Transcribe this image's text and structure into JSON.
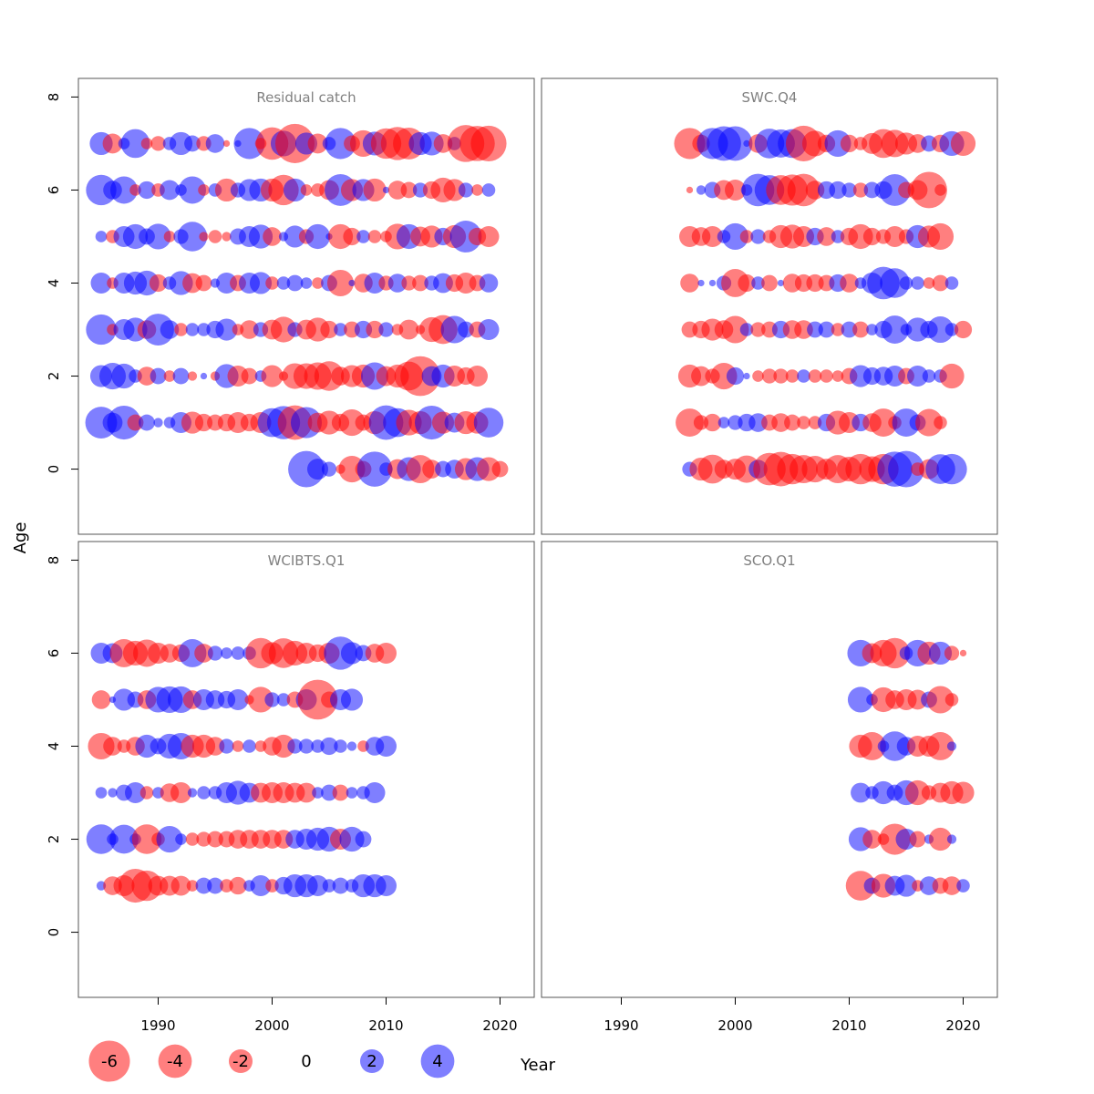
{
  "chart_data": {
    "type": "scatter",
    "subtype": "bubble",
    "xlabel": "Year",
    "ylabel": "Age",
    "xlim": [
      1983,
      2023
    ],
    "ylim": [
      -1.4,
      8.4
    ],
    "x_ticks": [
      1990,
      2000,
      2010,
      2020
    ],
    "y_ticks": [
      0,
      2,
      4,
      6,
      8
    ],
    "colors": {
      "positive": "#0000FF",
      "negative": "#FF0000",
      "opacity": 0.5
    },
    "legend": {
      "position": "bottom-left",
      "values": [
        -6,
        -4,
        -2,
        0,
        2,
        4
      ],
      "labels": [
        "-6",
        "-4",
        "-2",
        "0",
        "2",
        "4"
      ]
    },
    "panels": [
      {
        "title": "Residual catch",
        "year_start": 1985,
        "ages": [
          {
            "age": 7,
            "values": [
              1.2,
              -0.9,
              0.3,
              1.9,
              -0.3,
              -0.5,
              0.4,
              1.2,
              0.6,
              -0.5,
              0.8,
              -0.1,
              0.1,
              2.2,
              -0.3,
              -2.4,
              1.5,
              -3.5,
              1.1,
              -0.9,
              0.4,
              2.2,
              -0.6,
              -1.6,
              1.3,
              -2.1,
              -2.5,
              -2.3,
              1.2,
              1.3,
              -0.8,
              0.4,
              -3.1,
              -2.8,
              -2.9
            ]
          },
          {
            "age": 6,
            "values": [
              2.1,
              0.8,
              1.7,
              -0.3,
              0.7,
              -0.4,
              0.9,
              0.3,
              1.7,
              -0.3,
              0.4,
              -1.2,
              0.5,
              1.1,
              1.2,
              -1.2,
              -2.1,
              1.2,
              -0.3,
              -0.4,
              -0.9,
              2.3,
              -1.1,
              1.1,
              -1.2,
              0.1,
              -0.8,
              -0.6,
              0.5,
              -0.7,
              -1.4,
              -1.1,
              0.5,
              -0.3,
              0.4
            ]
          },
          {
            "age": 5,
            "values": [
              0.3,
              -0.4,
              1.0,
              1.4,
              0.6,
              1.5,
              -0.3,
              0.5,
              2.0,
              -0.2,
              -0.4,
              -0.2,
              0.6,
              1.0,
              1.3,
              -0.8,
              0.2,
              1.1,
              -0.5,
              1.4,
              0.1,
              -1.4,
              -0.7,
              0.4,
              -0.4,
              -0.3,
              -1.5,
              1.4,
              -0.9,
              -1.1,
              0.7,
              -1.2,
              2.3,
              -0.7,
              -1.0
            ]
          },
          {
            "age": 4,
            "values": [
              1.0,
              -0.3,
              1.0,
              1.2,
              1.4,
              -0.7,
              0.4,
              1.3,
              -0.9,
              -0.6,
              0.2,
              1.0,
              -0.6,
              1.0,
              1.1,
              -0.4,
              0.4,
              0.6,
              0.3,
              -0.3,
              0.6,
              -1.6,
              0.1,
              -0.8,
              1.0,
              -0.5,
              0.8,
              -0.5,
              -0.6,
              0.5,
              0.9,
              -0.7,
              -1.0,
              -0.6,
              0.8
            ]
          },
          {
            "age": 3,
            "values": [
              2.1,
              -0.3,
              1.0,
              1.3,
              -0.8,
              2.3,
              0.8,
              -0.4,
              0.4,
              0.4,
              0.7,
              1.1,
              -0.3,
              -0.8,
              0.5,
              -0.9,
              -1.5,
              0.5,
              -0.9,
              -1.3,
              -0.7,
              0.4,
              -0.6,
              0.7,
              -0.7,
              0.5,
              -0.3,
              -0.9,
              -0.2,
              -1.4,
              -1.9,
              1.7,
              0.6,
              -0.6,
              1.0
            ]
          },
          {
            "age": 2,
            "values": [
              1.1,
              1.6,
              1.4,
              0.4,
              -0.8,
              0.6,
              -0.3,
              0.6,
              -0.2,
              0.1,
              -0.2,
              1.3,
              -1.0,
              -0.6,
              0.3,
              -1.1,
              -0.2,
              -1.5,
              -1.5,
              -1.7,
              -2.0,
              -0.8,
              -1.1,
              -1.2,
              1.7,
              -0.9,
              -1.2,
              -1.9,
              -3.6,
              0.9,
              1.2,
              -1.0,
              -0.7,
              -1.0
            ]
          },
          {
            "age": 1,
            "values": [
              2.3,
              0.9,
              2.6,
              -0.6,
              0.6,
              0.2,
              0.3,
              1.0,
              -1.1,
              -0.7,
              -0.6,
              -0.7,
              -1.0,
              -0.7,
              -1.0,
              1.9,
              2.5,
              -2.7,
              2.2,
              -0.9,
              -1.3,
              -0.7,
              -1.6,
              -0.6,
              -1.2,
              2.7,
              1.9,
              -1.5,
              -1.2,
              2.6,
              -1.1,
              0.9,
              -1.2,
              -1.1,
              2.0
            ]
          },
          {
            "age": 0,
            "values": [
              null,
              null,
              null,
              null,
              null,
              null,
              null,
              null,
              null,
              null,
              null,
              null,
              null,
              null,
              null,
              null,
              null,
              null,
              3.0,
              1.0,
              0.5,
              -0.2,
              -1.6,
              -0.6,
              2.8,
              0.4,
              -0.9,
              1.3,
              -1.8,
              -0.8,
              0.6,
              0.8,
              -1.1,
              1.3,
              -1.3,
              -0.6
            ]
          }
        ]
      },
      {
        "title": "SWC.Q4",
        "year_start": 1996,
        "ages": [
          {
            "age": 7,
            "values": [
              -2.2,
              -0.7,
              2.2,
              2.7,
              2.7,
              0.1,
              -0.8,
              2.0,
              1.8,
              1.9,
              -2.9,
              -1.5,
              -0.7,
              1.6,
              -0.7,
              -0.4,
              -1.0,
              -1.9,
              -1.7,
              -1.1,
              -0.8,
              0.6,
              -0.7,
              1.4,
              -1.4
            ]
          },
          {
            "age": 6,
            "values": [
              -0.1,
              0.2,
              0.6,
              -0.9,
              -1.0,
              0.3,
              2.4,
              2.0,
              -2.0,
              -2.2,
              -2.4,
              -0.8,
              0.7,
              0.7,
              0.5,
              -0.5,
              0.6,
              0.7,
              2.3,
              -0.6,
              -0.9,
              -3.0,
              -0.3
            ]
          },
          {
            "age": 5,
            "values": [
              -1.0,
              -0.8,
              -1.0,
              0.4,
              1.6,
              -0.4,
              0.5,
              -0.4,
              -1.2,
              -1.3,
              -1.0,
              0.7,
              -0.8,
              0.4,
              -0.7,
              -1.4,
              -0.7,
              -0.5,
              -1.0,
              -0.5,
              1.2,
              -1.1,
              -1.6
            ]
          },
          {
            "age": 4,
            "values": [
              -0.8,
              0.1,
              0.1,
              0.5,
              -1.8,
              -0.7,
              0.4,
              -0.6,
              0.1,
              -0.8,
              -0.7,
              -0.7,
              -0.6,
              0.7,
              -0.8,
              0.3,
              1.0,
              2.4,
              2.0,
              0.4,
              0.4,
              -0.3,
              -0.6,
              0.4
            ]
          },
          {
            "age": 3,
            "values": [
              -0.6,
              -0.7,
              -1.1,
              -0.8,
              -1.7,
              0.4,
              -0.5,
              -0.6,
              0.7,
              -0.8,
              -0.8,
              0.6,
              0.6,
              -0.4,
              0.6,
              -0.6,
              0.3,
              0.7,
              1.8,
              0.3,
              1.3,
              0.7,
              1.6,
              0.4,
              -0.7
            ]
          },
          {
            "age": 2,
            "values": [
              -1.2,
              -0.9,
              -0.5,
              -1.6,
              0.7,
              0.1,
              -0.3,
              -0.5,
              -0.5,
              -0.4,
              0.4,
              -0.4,
              -0.4,
              -0.3,
              -0.6,
              1.1,
              0.7,
              0.8,
              1.0,
              -0.6,
              1.0,
              0.4,
              0.4,
              -1.4
            ]
          },
          {
            "age": 1,
            "values": [
              -1.8,
              -0.5,
              -0.7,
              0.3,
              0.5,
              0.7,
              0.8,
              -0.6,
              -0.8,
              -0.6,
              -0.4,
              -0.4,
              0.7,
              -1.3,
              -1.0,
              0.7,
              -0.8,
              -1.8,
              -0.4,
              1.8,
              0.6,
              -1.7,
              -0.4
            ]
          },
          {
            "age": 0,
            "values": [
              0.5,
              -1.2,
              -1.9,
              -0.8,
              -1.0,
              -1.7,
              0.8,
              -2.4,
              -2.7,
              -2.1,
              -1.8,
              -1.6,
              -1.0,
              -1.8,
              -1.4,
              -2.1,
              -1.5,
              -2.1,
              2.8,
              3.0,
              -0.4,
              -0.9,
              2.0,
              2.1
            ]
          }
        ]
      },
      {
        "title": "WCIBTS.Q1",
        "year_start": 1985,
        "ages": [
          {
            "age": 6,
            "values": [
              1.0,
              0.9,
              -1.8,
              -1.4,
              -1.7,
              -1.0,
              -0.8,
              -0.7,
              1.8,
              -0.8,
              0.5,
              0.3,
              0.4,
              0.4,
              -2.1,
              -1.1,
              -2.0,
              -1.4,
              -1.0,
              -0.7,
              -1.0,
              2.5,
              1.1,
              0.6,
              -0.8,
              -1.0
            ]
          },
          {
            "age": 5,
            "values": [
              -0.8,
              0.1,
              1.1,
              0.6,
              -0.8,
              1.5,
              1.6,
              1.6,
              -0.8,
              1.0,
              0.8,
              0.7,
              1.0,
              -0.2,
              -1.5,
              0.5,
              0.4,
              -0.6,
              1.0,
              -3.6,
              -0.6,
              1.0,
              1.1
            ]
          },
          {
            "age": 4,
            "values": [
              -1.6,
              -0.8,
              -0.4,
              -0.8,
              1.2,
              0.6,
              1.4,
              1.6,
              -1.2,
              -1.2,
              -0.8,
              0.5,
              -0.3,
              0.4,
              -0.3,
              -0.8,
              -1.2,
              0.5,
              0.5,
              0.4,
              0.7,
              0.4,
              0.2,
              -0.3,
              0.8,
              1.0
            ]
          },
          {
            "age": 3,
            "values": [
              0.3,
              0.2,
              0.6,
              1.0,
              -0.4,
              0.3,
              -0.8,
              -1.0,
              0.2,
              0.4,
              0.4,
              1.0,
              1.3,
              0.9,
              -0.9,
              -1.0,
              -1.0,
              -0.9,
              -0.9,
              0.3,
              0.6,
              -0.6,
              0.3,
              0.4,
              1.0
            ]
          },
          {
            "age": 2,
            "values": [
              2.0,
              0.3,
              1.9,
              0.3,
              -2.0,
              -0.4,
              1.6,
              0.3,
              -0.4,
              -0.5,
              -0.6,
              -0.6,
              -0.8,
              -0.8,
              -0.8,
              -0.8,
              -0.8,
              0.8,
              1.0,
              1.2,
              1.4,
              -1.0,
              1.4,
              0.6
            ]
          },
          {
            "age": 1,
            "values": [
              0.2,
              -0.8,
              -1.0,
              -2.6,
              -2.1,
              -0.9,
              -0.9,
              -0.9,
              -0.3,
              0.6,
              0.6,
              -0.4,
              -0.7,
              0.3,
              1.0,
              -0.4,
              0.7,
              1.2,
              1.2,
              1.0,
              0.4,
              0.6,
              0.4,
              1.2,
              1.2,
              1.0
            ]
          }
        ]
      },
      {
        "title": "SCO.Q1",
        "year_start": 2011,
        "ages": [
          {
            "age": 6,
            "values": [
              1.6,
              -0.9,
              -1.6,
              -2.1,
              0.4,
              1.6,
              -1.2,
              1.2,
              -0.5,
              -0.1
            ]
          },
          {
            "age": 5,
            "values": [
              1.5,
              0.3,
              -1.4,
              -0.8,
              -1.0,
              -0.9,
              0.6,
              -1.7,
              -0.4
            ]
          },
          {
            "age": 4,
            "values": [
              -1.2,
              -1.8,
              0.3,
              2.0,
              0.8,
              -1.0,
              -1.0,
              -1.8,
              0.2
            ]
          },
          {
            "age": 3,
            "values": [
              0.9,
              0.4,
              1.2,
              0.6,
              1.4,
              -1.4,
              -0.5,
              -0.9,
              -1.2,
              -1.1
            ]
          },
          {
            "age": 2,
            "values": [
              1.3,
              -0.8,
              -0.3,
              -2.2,
              1.0,
              -0.6,
              0.2,
              -1.2,
              0.2
            ]
          },
          {
            "age": 1,
            "values": [
              -2.0,
              0.6,
              -1.3,
              0.9,
              1.1,
              -0.3,
              0.8,
              -0.6,
              -0.8,
              0.4
            ]
          }
        ]
      }
    ]
  }
}
